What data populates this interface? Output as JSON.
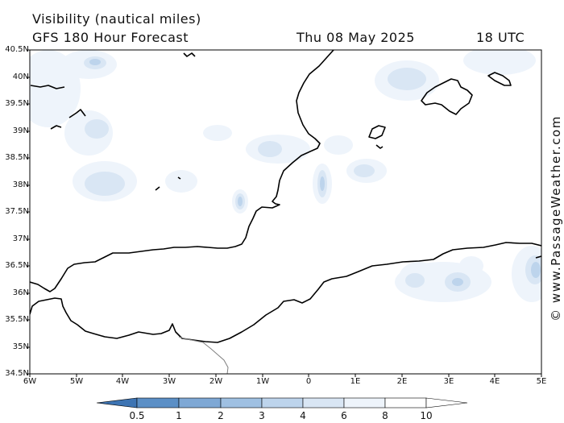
{
  "title": "Visibility (nautical miles)",
  "subtitle": "GFS 180 Hour Forecast",
  "date": "Thu 08 May 2025",
  "time": "18 UTC",
  "credit": "© www.PassageWeather.com",
  "lat_labels": [
    "40.5N",
    "40N",
    "39.5N",
    "39N",
    "38.5N",
    "38N",
    "37.5N",
    "37N",
    "36.5N",
    "36N",
    "35.5N",
    "35N",
    "34.5N"
  ],
  "lon_labels": [
    "6W",
    "5W",
    "4W",
    "3W",
    "2W",
    "1W",
    "0",
    "1E",
    "2E",
    "3E",
    "4E",
    "5E"
  ],
  "colorbar": {
    "labels": [
      "0.5",
      "1",
      "2",
      "3",
      "4",
      "6",
      "8",
      "10"
    ],
    "colors": [
      "#3d74b3",
      "#5b8fc6",
      "#7ea8d5",
      "#9fc0e2",
      "#bdd4ec",
      "#d9e6f4",
      "#eef4fb",
      "#ffffff"
    ]
  },
  "colors": {
    "land_outline": "#000000",
    "border": "#7f7f7f",
    "frame": "#000000"
  }
}
